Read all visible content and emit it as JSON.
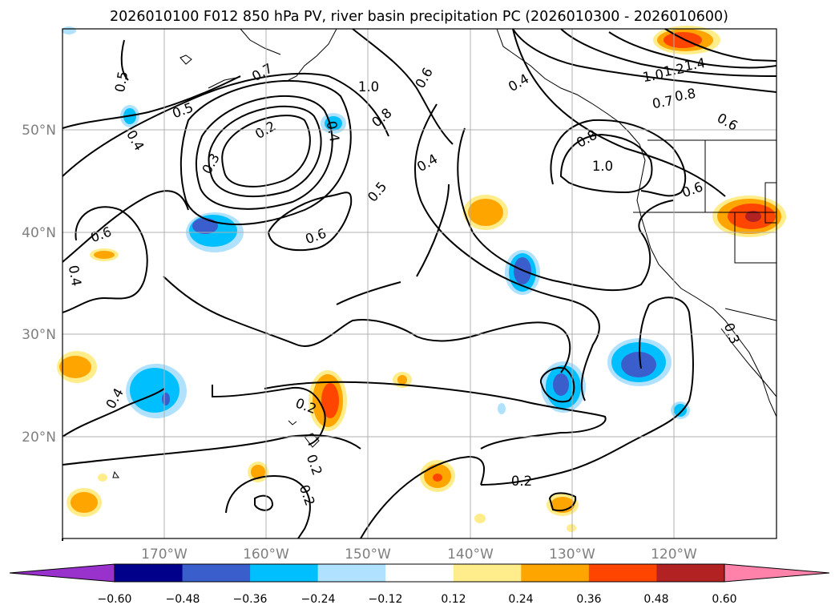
{
  "title": "2026010100 F012 850 hPa PV, river basin precipitation PC (2026010300 - 2026010600)",
  "lat_labels": [
    "50°N",
    "40°N",
    "30°N",
    "20°N"
  ],
  "lon_labels": [
    "170°W",
    "160°W",
    "150°W",
    "140°W",
    "130°W",
    "120°W"
  ],
  "colorbar": {
    "ticks": [
      "−0.60",
      "−0.48",
      "−0.36",
      "−0.24",
      "−0.12",
      "0.12",
      "0.24",
      "0.36",
      "0.48",
      "0.60"
    ],
    "colors": [
      "#9932cc",
      "#00008b",
      "#3a5fcd",
      "#00bfff",
      "#b0e2ff",
      "#ffffff",
      "#ffec8b",
      "#ffa500",
      "#ff4500",
      "#b22222",
      "#ff82ab"
    ]
  },
  "contour_labels": [
    "0.5",
    "0.5",
    "0.4",
    "0.6",
    "0.4",
    "0.7",
    "1.0",
    "0.6",
    "0.4",
    "0.2",
    "0.3",
    "0.4",
    "0.8",
    "0.5",
    "0.4",
    "0.6",
    "1.4",
    "1.2",
    "1.0",
    "0.7",
    "0.8",
    "0.6",
    "0.8",
    "1.0",
    "0.6",
    "0.4",
    "0.2",
    "0.2",
    "0.2",
    "0.2",
    "0.3"
  ]
}
